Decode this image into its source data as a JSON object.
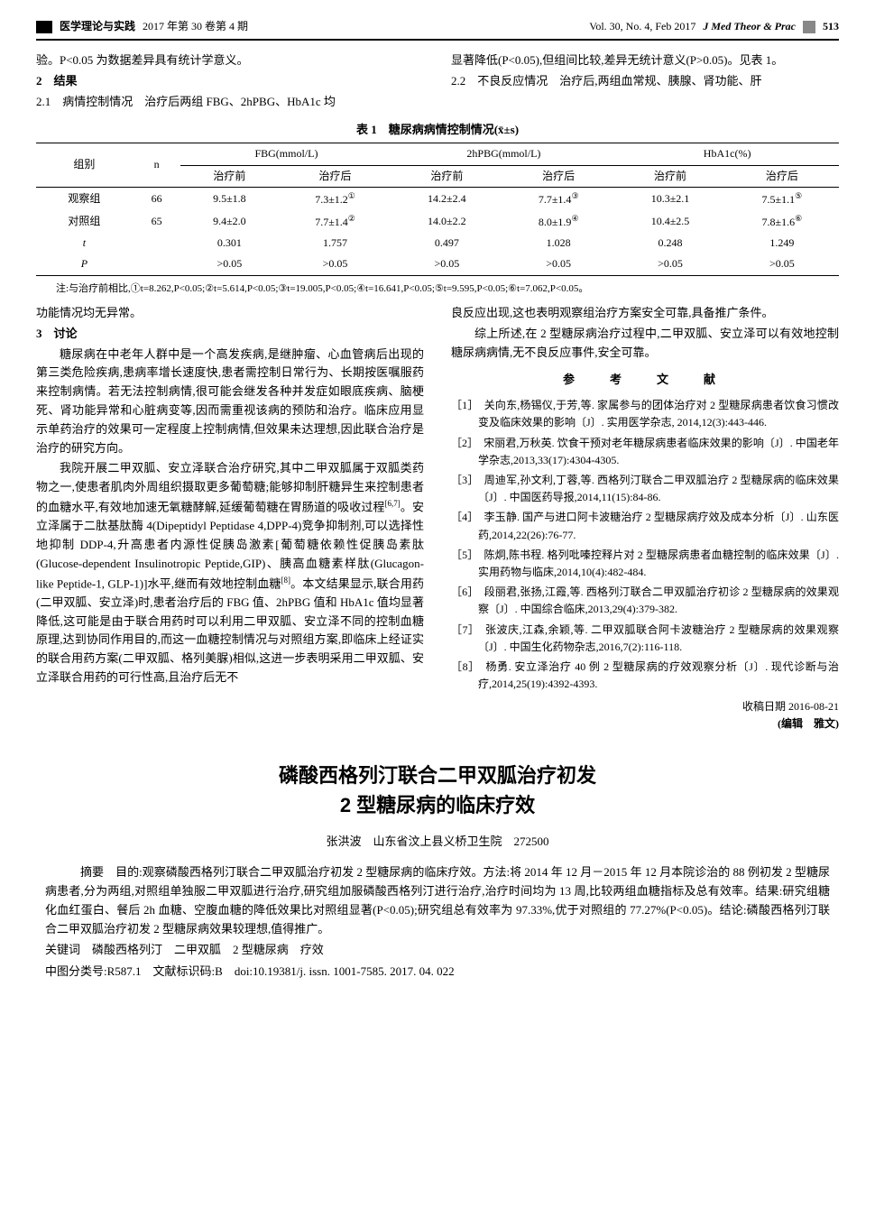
{
  "header": {
    "journal_cn": "医学理论与实践",
    "issue_cn": "2017 年第 30 卷第 4 期",
    "vol_en": "Vol. 30, No. 4, Feb 2017",
    "journal_en": "J Med Theor & Prac",
    "page": "513"
  },
  "top_text": {
    "left_p1": "验。P<0.05 为数据差异具有统计学意义。",
    "left_h2": "2　结果",
    "left_p2": "2.1　病情控制情况　治疗后两组 FBG、2hPBG、HbA1c 均",
    "right_p1": "显著降低(P<0.05),但组间比较,差异无统计意义(P>0.05)。见表 1。",
    "right_p2": "2.2　不良反应情况　治疗后,两组血常规、胰腺、肾功能、肝"
  },
  "table1": {
    "caption": "表 1　糖尿病病情控制情况(x̄±s)",
    "header_groups": [
      "组别",
      "n",
      "FBG(mmol/L)",
      "2hPBG(mmol/L)",
      "HbA1c(%)"
    ],
    "sub_headers": [
      "治疗前",
      "治疗后"
    ],
    "rows": [
      {
        "group": "观察组",
        "n": "66",
        "fbg_pre": "9.5±1.8",
        "fbg_post": "7.3±1.2①",
        "pbg_pre": "14.2±2.4",
        "pbg_post": "7.7±1.4③",
        "hba_pre": "10.3±2.1",
        "hba_post": "7.5±1.1⑤"
      },
      {
        "group": "对照组",
        "n": "65",
        "fbg_pre": "9.4±2.0",
        "fbg_post": "7.7±1.4②",
        "pbg_pre": "14.0±2.2",
        "pbg_post": "8.0±1.9④",
        "hba_pre": "10.4±2.5",
        "hba_post": "7.8±1.6⑥"
      },
      {
        "group": "t",
        "n": "",
        "fbg_pre": "0.301",
        "fbg_post": "1.757",
        "pbg_pre": "0.497",
        "pbg_post": "1.028",
        "hba_pre": "0.248",
        "hba_post": "1.249"
      },
      {
        "group": "P",
        "n": "",
        "fbg_pre": ">0.05",
        "fbg_post": ">0.05",
        "pbg_pre": ">0.05",
        "pbg_post": ">0.05",
        "hba_pre": ">0.05",
        "hba_post": ">0.05"
      }
    ],
    "note": "注:与治疗前相比,①t=8.262,P<0.05;②t=5.614,P<0.05;③t=19.005,P<0.05;④t=16.641,P<0.05;⑤t=9.595,P<0.05;⑥t=7.062,P<0.05。"
  },
  "body": {
    "left": [
      {
        "cls": "no-indent",
        "t": "功能情况均无异常。"
      },
      {
        "cls": "section-head",
        "t": "3　讨论"
      },
      {
        "cls": "",
        "t": "糖尿病在中老年人群中是一个高发疾病,是继肿瘤、心血管病后出现的第三类危险疾病,患病率增长速度快,患者需控制日常行为、长期按医嘱服药来控制病情。若无法控制病情,很可能会继发各种并发症如眼底疾病、脑梗死、肾功能异常和心脏病变等,因而需重视该病的预防和治疗。临床应用显示单药治疗的效果可一定程度上控制病情,但效果未达理想,因此联合治疗是治疗的研究方向。"
      },
      {
        "cls": "",
        "t": "我院开展二甲双胍、安立泽联合治疗研究,其中二甲双胍属于双胍类药物之一,使患者肌肉外周组织摄取更多葡萄糖;能够抑制肝糖异生来控制患者的血糖水平,有效地加速无氧糖酵解,延缓葡萄糖在胃肠道的吸收过程[6,7]。安立泽属于二肽基肽酶 4(Dipeptidyl Peptidase 4,DPP-4)竞争抑制剂,可以选择性地抑制 DDP-4,升高患者内源性促胰岛激素[葡萄糖依赖性促胰岛素肽(Glucose-dependent Insulinotropic Peptide,GIP)、胰高血糖素样肽(Glucagon-like Peptide-1, GLP-1)]水平,继而有效地控制血糖[8]。本文结果显示,联合用药(二甲双胍、安立泽)时,患者治疗后的 FBG 值、2hPBG 值和 HbA1c 值均显著降低,这可能是由于联合用药时可以利用二甲双胍、安立泽不同的控制血糖原理,达到协同作用目的,而这一血糖控制情况与对照组方案,即临床上经证实的联合用药方案(二甲双胍、格列美脲)相似,这进一步表明采用二甲双胍、安立泽联合用药的可行性高,且治疗后无不"
      }
    ],
    "right_top": [
      {
        "cls": "no-indent",
        "t": "良反应出现,这也表明观察组治疗方案安全可靠,具备推广条件。"
      },
      {
        "cls": "",
        "t": "综上所述,在 2 型糖尿病治疗过程中,二甲双胍、安立泽可以有效地控制糖尿病病情,无不良反应事件,安全可靠。"
      }
    ],
    "refs_title": "参　考　文　献",
    "refs": [
      "［1］　关向东,杨锡仪,于芳,等. 家属参与的团体治疗对 2 型糖尿病患者饮食习惯改变及临床效果的影响〔J〕. 实用医学杂志, 2014,12(3):443-446.",
      "［2］　宋丽君,万秋英. 饮食干预对老年糖尿病患者临床效果的影响〔J〕. 中国老年学杂志,2013,33(17):4304-4305.",
      "［3］　周迪军,孙文利,丁蓉,等. 西格列汀联合二甲双胍治疗 2 型糖尿病的临床效果〔J〕. 中国医药导报,2014,11(15):84-86.",
      "［4］　李玉静. 国产与进口阿卡波糖治疗 2 型糖尿病疗效及成本分析〔J〕. 山东医药,2014,22(26):76-77.",
      "［5］　陈炯,陈书程. 格列吡嗪控释片对 2 型糖尿病患者血糖控制的临床效果〔J〕. 实用药物与临床,2014,10(4):482-484.",
      "［6］　段丽君,张扬,江霞,等. 西格列汀联合二甲双胍治疗初诊 2 型糖尿病的效果观察〔J〕. 中国综合临床,2013,29(4):379-382.",
      "［7］　张波庆,江森,余颖,等. 二甲双胍联合阿卡波糖治疗 2 型糖尿病的效果观察〔J〕. 中国生化药物杂志,2016,7(2):116-118.",
      "［8］　杨勇. 安立泽治疗 40 例 2 型糖尿病的疗效观察分析〔J〕. 现代诊断与治疗,2014,25(19):4392-4393."
    ],
    "date": "收稿日期 2016-08-21",
    "editor": "(编辑　雅文)"
  },
  "article2": {
    "title_l1": "磷酸西格列汀联合二甲双胍治疗初发",
    "title_l2": "2 型糖尿病的临床疗效",
    "author": "张洪波　山东省汶上县义桥卫生院　272500",
    "abstract": "摘要　目的:观察磷酸西格列汀联合二甲双胍治疗初发 2 型糖尿病的临床疗效。方法:将 2014 年 12 月－2015 年 12 月本院诊治的 88 例初发 2 型糖尿病患者,分为两组,对照组单独服二甲双胍进行治疗,研究组加服磷酸西格列汀进行治疗,治疗时间均为 13 周,比较两组血糖指标及总有效率。结果:研究组糖化血红蛋白、餐后 2h 血糖、空腹血糖的降低效果比对照组显著(P<0.05);研究组总有效率为 97.33%,优于对照组的 77.27%(P<0.05)。结论:磷酸西格列汀联合二甲双胍治疗初发 2 型糖尿病效果较理想,值得推广。",
    "keywords": "关键词　磷酸西格列汀　二甲双胍　2 型糖尿病　疗效",
    "classnum": "中图分类号:R587.1　文献标识码:B　doi:10.19381/j. issn. 1001-7585. 2017. 04. 022"
  }
}
